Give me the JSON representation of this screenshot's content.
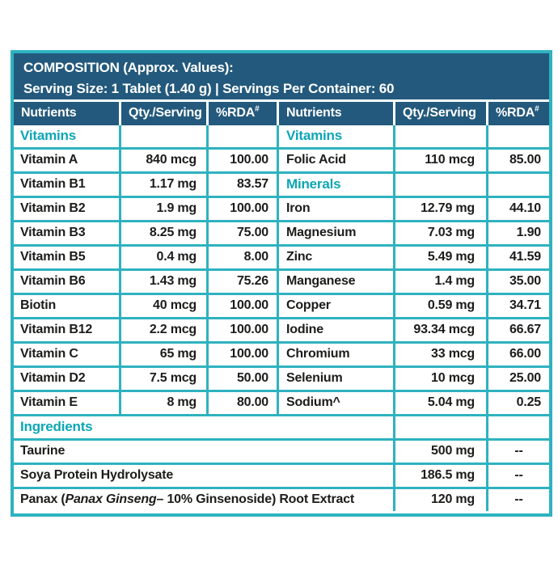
{
  "title": {
    "line1": "COMPOSITION (Approx. Values):",
    "line2": "Serving Size: 1 Tablet (1.40 g) | Servings Per Container: 60"
  },
  "columns": {
    "nutrients": "Nutrients",
    "qty": "Qty./Serving",
    "rda": "%RDA",
    "rda_sup": "#"
  },
  "colors": {
    "header_navy": "#23597c",
    "grid_teal": "#2eb2c0",
    "section_teal": "#0da6b6",
    "text": "#1c1c1a"
  },
  "left": {
    "section1": "Vitamins",
    "rows": [
      {
        "name": "Vitamin A",
        "qty": "840 mcg",
        "rda": "100.00"
      },
      {
        "name": "Vitamin B1",
        "qty": "1.17 mg",
        "rda": "83.57"
      },
      {
        "name": "Vitamin B2",
        "qty": "1.9 mg",
        "rda": "100.00"
      },
      {
        "name": "Vitamin B3",
        "qty": "8.25 mg",
        "rda": "75.00"
      },
      {
        "name": "Vitamin B5",
        "qty": "0.4 mg",
        "rda": "8.00"
      },
      {
        "name": "Vitamin B6",
        "qty": "1.43 mg",
        "rda": "75.26"
      },
      {
        "name": "Biotin",
        "qty": "40 mcg",
        "rda": "100.00"
      },
      {
        "name": "Vitamin B12",
        "qty": "2.2 mcg",
        "rda": "100.00"
      },
      {
        "name": "Vitamin C",
        "qty": "65 mg",
        "rda": "100.00"
      },
      {
        "name": "Vitamin D2",
        "qty": "7.5 mcg",
        "rda": "50.00"
      },
      {
        "name": "Vitamin E",
        "qty": "8 mg",
        "rda": "80.00"
      }
    ]
  },
  "right": {
    "section1": "Vitamins",
    "folic": {
      "name": "Folic Acid",
      "qty": "110 mcg",
      "rda": "85.00"
    },
    "section2": "Minerals",
    "minerals": [
      {
        "name": "Iron",
        "qty": "12.79 mg",
        "rda": "44.10"
      },
      {
        "name": "Magnesium",
        "qty": "7.03 mg",
        "rda": "1.90"
      },
      {
        "name": "Zinc",
        "qty": "5.49 mg",
        "rda": "41.59"
      },
      {
        "name": "Manganese",
        "qty": "1.4 mg",
        "rda": "35.00"
      },
      {
        "name": "Copper",
        "qty": "0.59 mg",
        "rda": "34.71"
      },
      {
        "name": "Iodine",
        "qty": "93.34 mcg",
        "rda": "66.67"
      },
      {
        "name": "Chromium",
        "qty": "33 mcg",
        "rda": "66.00"
      },
      {
        "name": "Selenium",
        "qty": "10 mcg",
        "rda": "25.00"
      },
      {
        "name": "Sodium^",
        "qty": "5.04 mg",
        "rda": "0.25"
      }
    ]
  },
  "ingredients": {
    "section": "Ingredients",
    "rows": [
      {
        "name_pre": "Taurine",
        "name_italic": "",
        "name_post": "",
        "qty": "500 mg",
        "rda": "--"
      },
      {
        "name_pre": "Soya Protein Hydrolysate",
        "name_italic": "",
        "name_post": "",
        "qty": "186.5 mg",
        "rda": "--"
      },
      {
        "name_pre": "Panax (",
        "name_italic": "Panax Ginseng",
        "name_post": "– 10% Ginsenoside) Root Extract",
        "qty": "120 mg",
        "rda": "--"
      }
    ]
  }
}
